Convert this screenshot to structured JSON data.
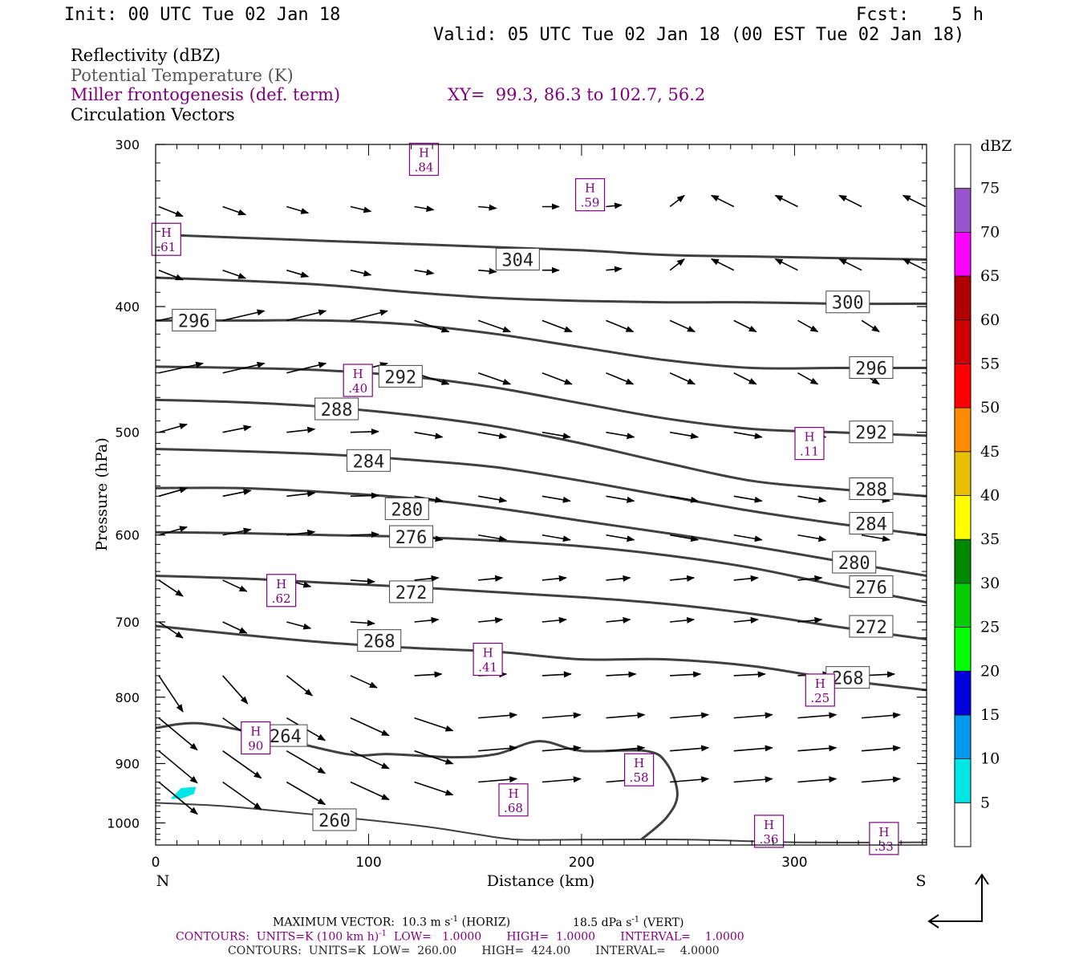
{
  "header": {
    "init": "Init: 00 UTC Tue 02 Jan 18",
    "fcst": "Fcst:    5 h",
    "valid": "Valid: 05 UTC Tue 02 Jan 18 (00 EST Tue 02 Jan 18)"
  },
  "fields": {
    "reflectivity": "Reflectivity (dBZ)",
    "theta": "Potential Temperature (K)",
    "frontogenesis": "Miller frontogenesis (def. term)",
    "xy": "XY=  99.3, 86.3 to 102.7, 56.2",
    "vectors": "Circulation Vectors"
  },
  "footer": {
    "max_vector": "MAXIMUM VECTOR:  10.3 m s",
    "max_vector_sup": "-1",
    "max_vector_horiz": " (HORIZ)",
    "max_vector_vert": "18.5 dPa s",
    "max_vector_vert_sup": "-1",
    "max_vector_vert_tail": " (VERT)",
    "contours1_a": "CONTOURS:  UNITS=K (100 km h)",
    "contours1_sup": "-1",
    "contours1_b": "  LOW=   1.0000       HIGH=  1.0000       INTERVAL=    1.0000",
    "contours2": "CONTOURS:  UNITS=K  LOW=  260.00       HIGH=  424.00       INTERVAL=    4.0000"
  },
  "colors": {
    "purple": "#800080",
    "contour": "#404040"
  },
  "chart_data": {
    "type": "cross-section",
    "xlabel": "Distance (km)",
    "ylabel": "Pressure (hPa)",
    "xlim": [
      0,
      362
    ],
    "ylim": [
      300,
      1040
    ],
    "y_log": true,
    "x_ticks": [
      0,
      100,
      200,
      300
    ],
    "y_ticks": [
      300,
      400,
      500,
      600,
      700,
      800,
      900,
      1000
    ],
    "endpoints": {
      "left": "N",
      "right": "S"
    },
    "colorbar": {
      "unit": "dBZ",
      "levels": [
        "5",
        "10",
        "15",
        "20",
        "25",
        "30",
        "35",
        "40",
        "45",
        "50",
        "55",
        "60",
        "65",
        "70",
        "75"
      ],
      "colors": [
        "#ffffff",
        "#00e5e5",
        "#0099ee",
        "#0000dd",
        "#00ff00",
        "#00cc00",
        "#008800",
        "#ffff00",
        "#e6c000",
        "#ff8c00",
        "#ff0000",
        "#d00000",
        "#b00000",
        "#ff00ff",
        "#9955cc",
        "#ffffff"
      ]
    },
    "reflectivity_areas": [
      {
        "dbz": 5,
        "x": [
          7,
          12,
          18,
          19,
          12
        ],
        "p": [
          958,
          958,
          950,
          938,
          940
        ]
      }
    ],
    "theta_contours": [
      {
        "value": 304,
        "x": [
          0,
          40,
          80,
          120,
          160,
          200,
          240,
          280,
          320,
          362
        ],
        "p": [
          352,
          354,
          356,
          358,
          360,
          362,
          365,
          366,
          367,
          368
        ]
      },
      {
        "value": 300,
        "x": [
          0,
          40,
          80,
          120,
          160,
          200,
          240,
          280,
          320,
          362
        ],
        "p": [
          380,
          382,
          385,
          390,
          394,
          396,
          397,
          397,
          398,
          398
        ]
      },
      {
        "value": 296,
        "x": [
          0,
          40,
          80,
          120,
          160,
          200,
          240,
          280,
          320,
          362
        ],
        "p": [
          410,
          410,
          410,
          413,
          420,
          430,
          440,
          446,
          446,
          446
        ]
      },
      {
        "value": 292,
        "x": [
          0,
          40,
          80,
          120,
          160,
          200,
          240,
          280,
          320,
          362
        ],
        "p": [
          445,
          446,
          448,
          453,
          462,
          475,
          488,
          497,
          500,
          503
        ]
      },
      {
        "value": 288,
        "x": [
          0,
          40,
          80,
          120,
          160,
          200,
          240,
          280,
          320,
          362
        ],
        "p": [
          472,
          474,
          478,
          485,
          495,
          510,
          528,
          545,
          553,
          560
        ]
      },
      {
        "value": 284,
        "x": [
          0,
          40,
          80,
          120,
          160,
          200,
          240,
          280,
          320,
          362
        ],
        "p": [
          515,
          517,
          520,
          525,
          532,
          545,
          560,
          575,
          588,
          600
        ]
      },
      {
        "value": 280,
        "x": [
          0,
          40,
          80,
          120,
          160,
          200,
          240,
          280,
          320,
          362
        ],
        "p": [
          552,
          552,
          556,
          562,
          572,
          585,
          598,
          612,
          628,
          645
        ]
      },
      {
        "value": 276,
        "x": [
          0,
          40,
          80,
          120,
          160,
          200,
          240,
          280,
          320,
          362
        ],
        "p": [
          597,
          598,
          600,
          602,
          606,
          612,
          622,
          636,
          656,
          676
        ]
      },
      {
        "value": 272,
        "x": [
          0,
          40,
          80,
          120,
          160,
          200,
          240,
          280,
          320,
          362
        ],
        "p": [
          645,
          648,
          653,
          658,
          664,
          670,
          678,
          690,
          706,
          722
        ]
      },
      {
        "value": 268,
        "x": [
          0,
          40,
          80,
          120,
          160,
          200,
          240,
          280,
          320,
          362
        ],
        "p": [
          705,
          716,
          726,
          733,
          738,
          748,
          748,
          757,
          775,
          790
        ]
      },
      {
        "value": 264,
        "x": [
          0,
          20,
          50,
          90,
          110,
          140,
          160,
          180,
          200,
          230,
          240,
          245,
          240,
          228
        ],
        "p": [
          845,
          838,
          855,
          885,
          885,
          890,
          885,
          865,
          880,
          880,
          900,
          950,
          990,
          1030
        ]
      },
      {
        "value": 260,
        "x": [
          0,
          30,
          60,
          100,
          130,
          150,
          170,
          200,
          250,
          300,
          362
        ],
        "p": [
          965,
          970,
          980,
          995,
          1008,
          1020,
          1030,
          1030,
          1030,
          1035,
          1035
        ]
      }
    ],
    "frontogenesis_maxima": [
      {
        "label": "H",
        "value": ".84",
        "x": 126,
        "p": 308
      },
      {
        "label": "H",
        "value": ".59",
        "x": 204,
        "p": 328
      },
      {
        "label": "H",
        "value": ".61",
        "x": 5,
        "p": 355
      },
      {
        "label": "H",
        "value": ".40",
        "x": 95,
        "p": 456
      },
      {
        "label": "H",
        "value": ".11",
        "x": 307,
        "p": 510
      },
      {
        "label": "H",
        "value": ".62",
        "x": 59,
        "p": 662
      },
      {
        "label": "H",
        "value": ".41",
        "x": 156,
        "p": 748
      },
      {
        "label": "H",
        "value": ".25",
        "x": 312,
        "p": 790
      },
      {
        "label": "H",
        "value": "90",
        "x": 47,
        "p": 860
      },
      {
        "label": "H",
        "value": ".58",
        "x": 227,
        "p": 910
      },
      {
        "label": "H",
        "value": ".68",
        "x": 168,
        "p": 960
      },
      {
        "label": "H",
        "value": ".36",
        "x": 288,
        "p": 1015
      },
      {
        "label": "H",
        "value": ".33",
        "x": 342,
        "p": 1028
      }
    ]
  }
}
